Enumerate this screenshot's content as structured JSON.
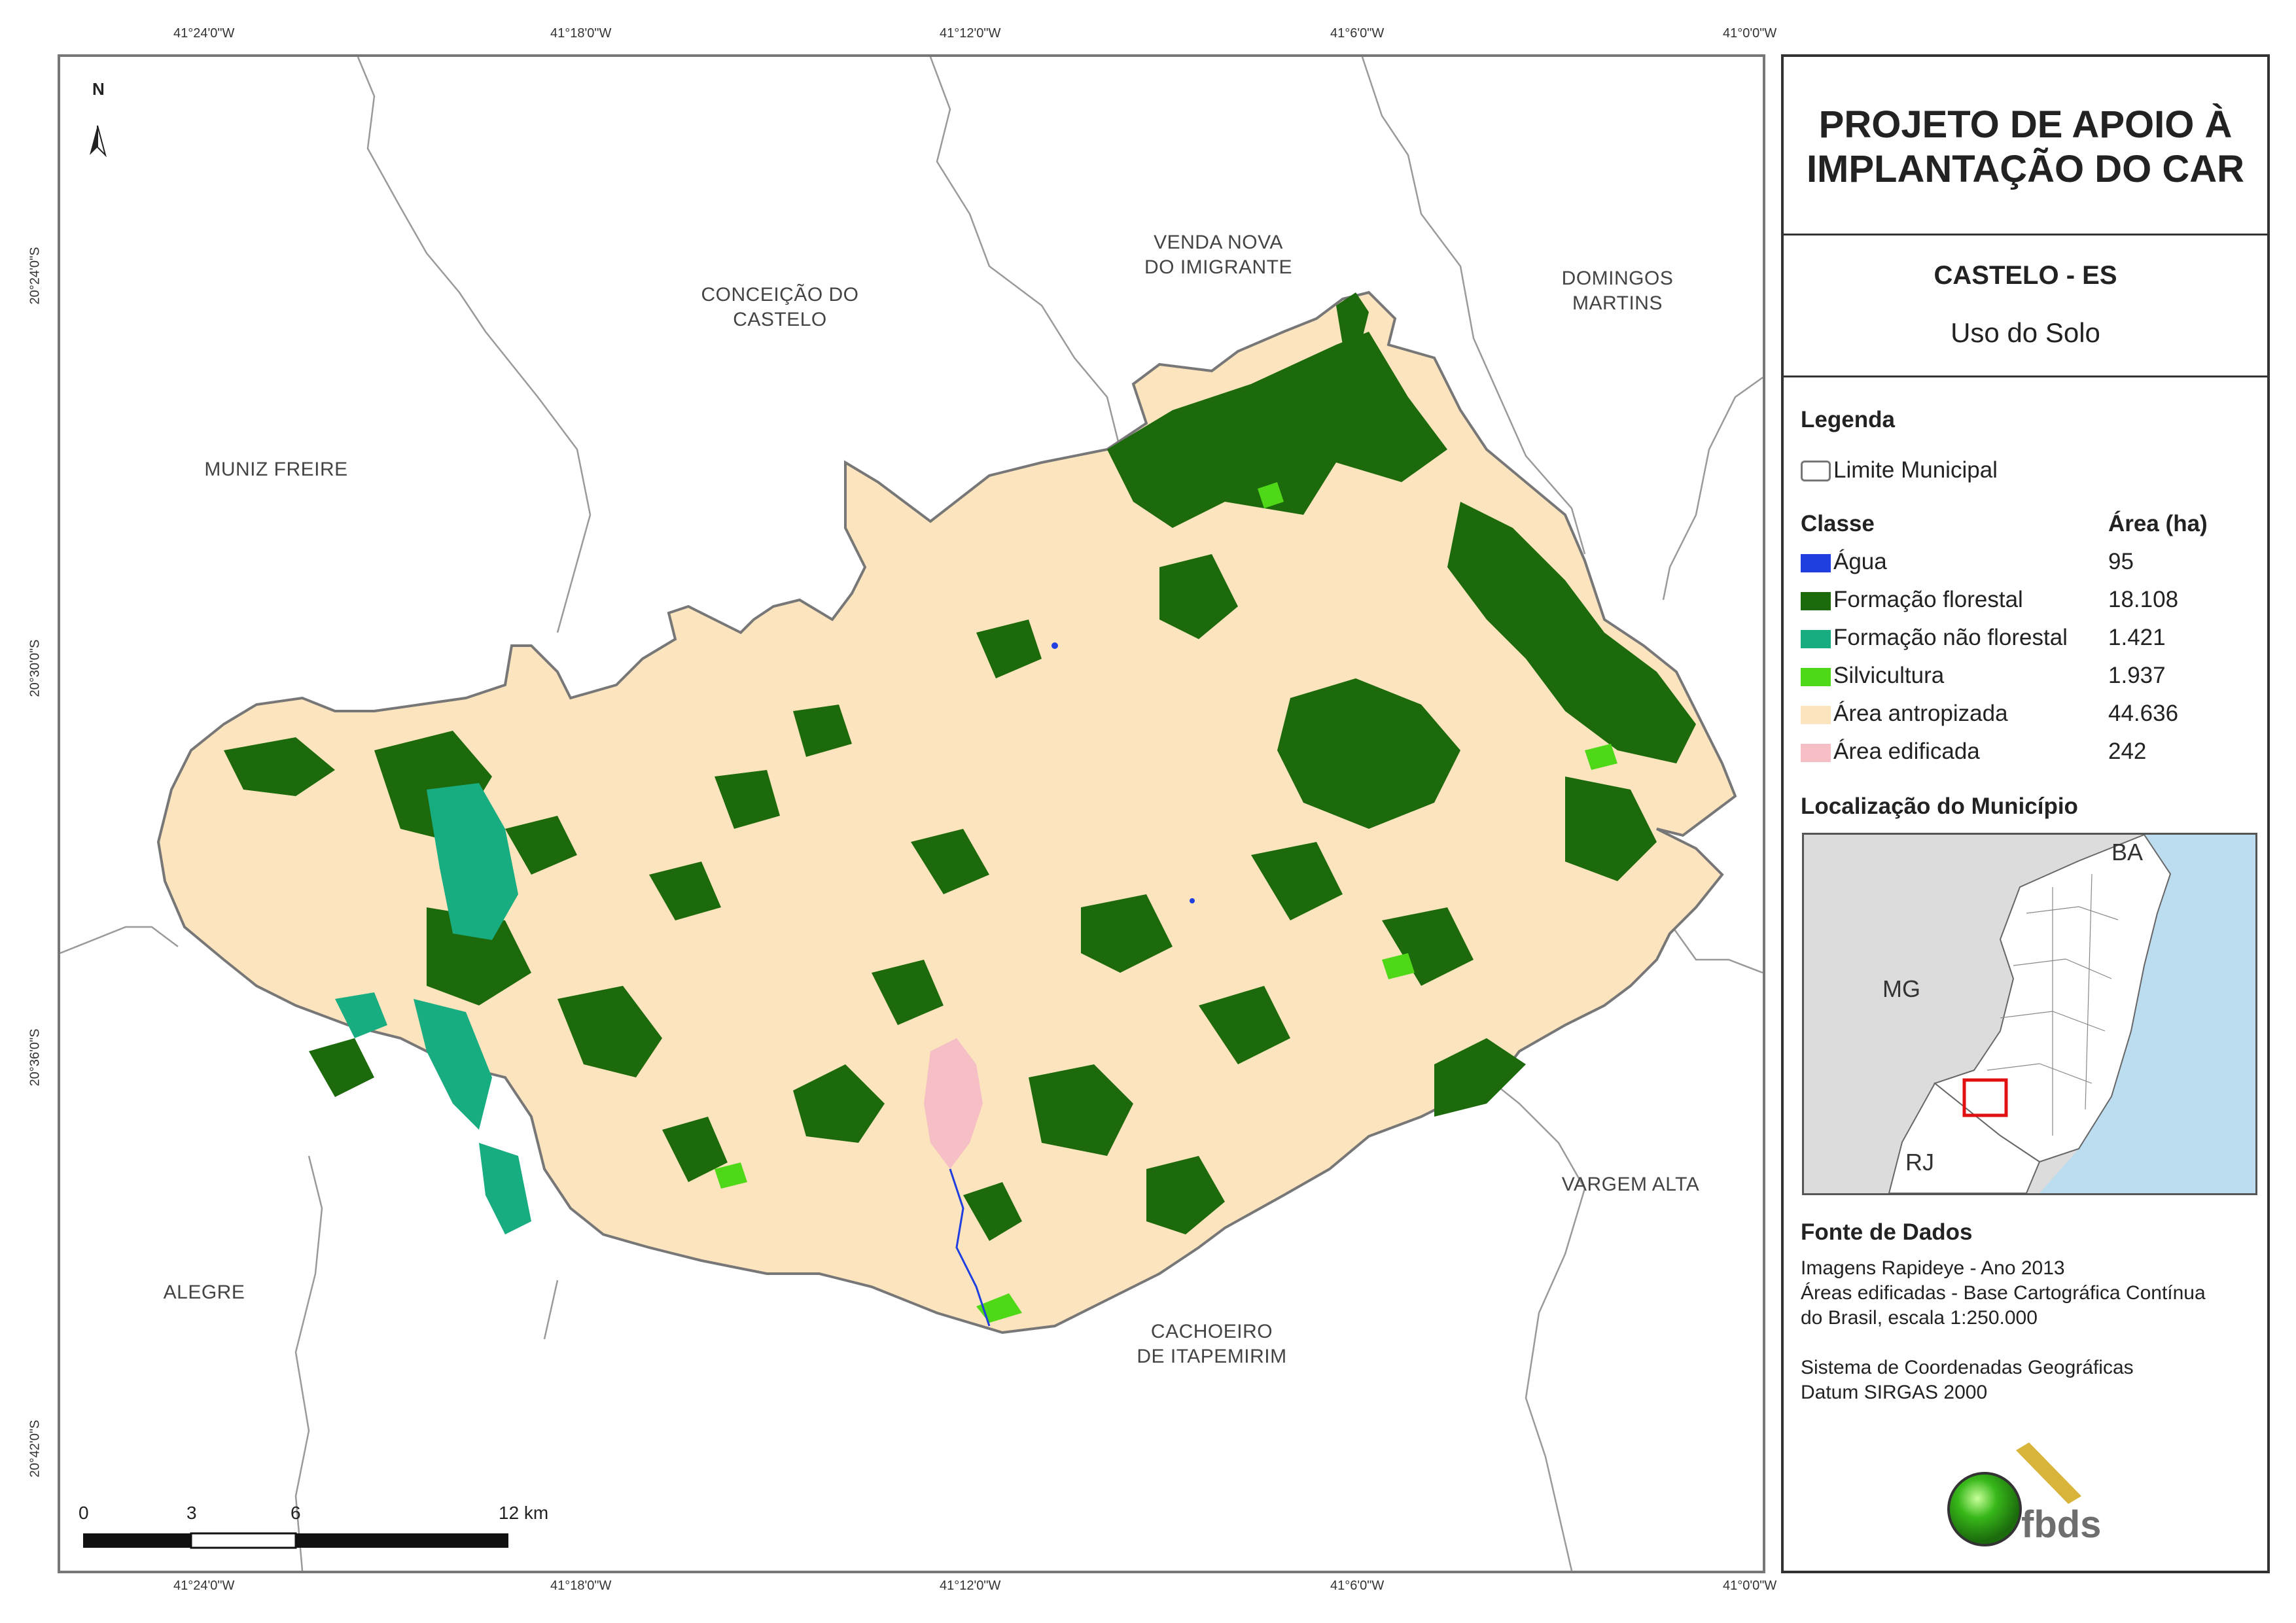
{
  "coordinates": {
    "top_lon": [
      "41°24'0\"W",
      "41°18'0\"W",
      "41°12'0\"W",
      "41°6'0\"W",
      "41°0'0\"W"
    ],
    "bottom_lon": [
      "41°24'0\"W",
      "41°18'0\"W",
      "41°12'0\"W",
      "41°6'0\"W",
      "41°0'0\"W"
    ],
    "left_lat": [
      "20°24'0\"S",
      "20°30'0\"S",
      "20°36'0\"S",
      "20°42'0\"S"
    ]
  },
  "north_arrow": {
    "label": "N"
  },
  "municipalities": {
    "venda_nova": [
      "VENDA NOVA",
      "DO IMIGRANTE"
    ],
    "conceicao": [
      "CONCEIÇÃO DO",
      "CASTELO"
    ],
    "domingos": [
      "DOMINGOS",
      "MARTINS"
    ],
    "muniz": "MUNIZ FREIRE",
    "alegre": "ALEGRE",
    "vargem": "VARGEM ALTA",
    "cachoeiro": [
      "CACHOEIRO",
      "DE ITAPEMIRIM"
    ]
  },
  "scale_bar": {
    "labels": [
      "0",
      "3",
      "6",
      "12 km"
    ]
  },
  "panel": {
    "title": [
      "PROJETO DE APOIO À",
      "IMPLANTAÇÃO DO CAR"
    ],
    "municipality": "CASTELO - ES",
    "subtitle": "Uso do Solo",
    "legend_heading": "Legenda",
    "limit_label": "Limite Municipal",
    "class_heading": "Classe",
    "area_heading": "Área (ha)",
    "classes": [
      {
        "name": "Água",
        "area": "95",
        "color": "#1f3fe0"
      },
      {
        "name": "Formação florestal",
        "area": "18.108",
        "color": "#1c6a0c"
      },
      {
        "name": "Formação não florestal",
        "area": "1.421",
        "color": "#18ad80"
      },
      {
        "name": "Silvicultura",
        "area": "1.937",
        "color": "#4ed818"
      },
      {
        "name": "Área antropizada",
        "area": "44.636",
        "color": "#fbe4be"
      },
      {
        "name": "Área edificada",
        "area": "242",
        "color": "#f6bfc6"
      }
    ],
    "location_heading": "Localização do Município",
    "location_labels": {
      "ba": "BA",
      "mg": "MG",
      "rj": "RJ"
    },
    "source_heading": "Fonte de Dados",
    "source_lines": [
      "Imagens Rapideye - Ano 2013",
      "Áreas edificadas - Base Cartográfica Contínua",
      "do Brasil, escala 1:250.000",
      "",
      "Sistema de Coordenadas Geográficas",
      "Datum SIRGAS 2000"
    ],
    "logo_text": "fbds"
  }
}
